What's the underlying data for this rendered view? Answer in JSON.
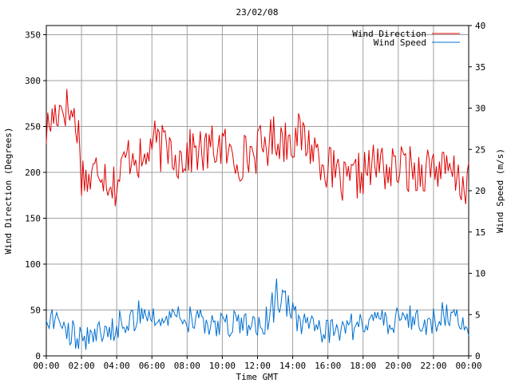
{
  "chart_data": {
    "type": "line",
    "title": "23/02/08",
    "xlabel": "Time GMT",
    "ylabel_left": "Wind Direction (Degrees)",
    "ylabel_right": "Wind Speed (m/s)",
    "x_ticks": [
      "00:00",
      "02:00",
      "04:00",
      "06:00",
      "08:00",
      "10:00",
      "12:00",
      "14:00",
      "16:00",
      "18:00",
      "20:00",
      "22:00",
      "00:00"
    ],
    "y_left_ticks": [
      0,
      50,
      100,
      150,
      200,
      250,
      300,
      350
    ],
    "y_right_ticks": [
      0,
      5,
      10,
      15,
      20,
      25,
      30,
      35,
      40
    ],
    "xlim_hours": [
      0,
      24
    ],
    "ylim_left": [
      0,
      360
    ],
    "ylim_right": [
      0,
      40
    ],
    "grid": true,
    "legend_position": "top-right",
    "series": [
      {
        "name": "Wind Direction",
        "axis": "left",
        "color": "#e00000",
        "anchors_hours": [
          0,
          0.5,
          1,
          1.5,
          1.8,
          2,
          2.5,
          3,
          3.5,
          4,
          4.5,
          5,
          5.5,
          6,
          6.5,
          7,
          7.5,
          8,
          8.5,
          9,
          9.5,
          10,
          10.5,
          11,
          11.5,
          12,
          12.5,
          13,
          13.5,
          14,
          14.5,
          15,
          15.5,
          16,
          16.5,
          17,
          17.5,
          18,
          18.5,
          19,
          19.5,
          20,
          20.5,
          21,
          21.5,
          22,
          22.5,
          23,
          23.5,
          24
        ],
        "anchors_values": [
          245,
          265,
          275,
          262,
          250,
          200,
          190,
          210,
          195,
          185,
          215,
          225,
          205,
          235,
          225,
          230,
          215,
          220,
          225,
          220,
          228,
          230,
          215,
          215,
          220,
          225,
          230,
          240,
          235,
          240,
          238,
          230,
          220,
          205,
          195,
          185,
          192,
          200,
          205,
          210,
          200,
          205,
          205,
          200,
          205,
          210,
          200,
          198,
          190,
          185
        ]
      },
      {
        "name": "Wind Speed",
        "axis": "right",
        "color": "#0070d0",
        "anchors_hours": [
          0,
          0.5,
          1,
          1.5,
          2,
          2.5,
          3,
          3.5,
          4,
          4.5,
          5,
          5.5,
          6,
          6.5,
          7,
          7.5,
          8,
          8.5,
          9,
          9.5,
          10,
          10.5,
          11,
          11.5,
          12,
          12.5,
          13,
          13.5,
          14,
          14.5,
          15,
          15.5,
          16,
          16.5,
          17,
          17.5,
          18,
          18.5,
          19,
          19.5,
          20,
          20.5,
          21,
          21.5,
          22,
          22.5,
          23,
          23.5,
          24
        ],
        "anchors_values": [
          5,
          4.5,
          3.5,
          2.5,
          2,
          2.5,
          3,
          3,
          3.5,
          4,
          4.5,
          4.5,
          5,
          5,
          5,
          4.8,
          4.5,
          4.2,
          4,
          3.8,
          3.5,
          3.8,
          4,
          3.5,
          3.2,
          4,
          5.5,
          7,
          5,
          4,
          3.5,
          3,
          3,
          2.8,
          3.2,
          3.5,
          3.8,
          4,
          4.2,
          4,
          4.5,
          4.8,
          4.5,
          4,
          4.2,
          4.5,
          4.8,
          4.5,
          4
        ]
      }
    ]
  }
}
